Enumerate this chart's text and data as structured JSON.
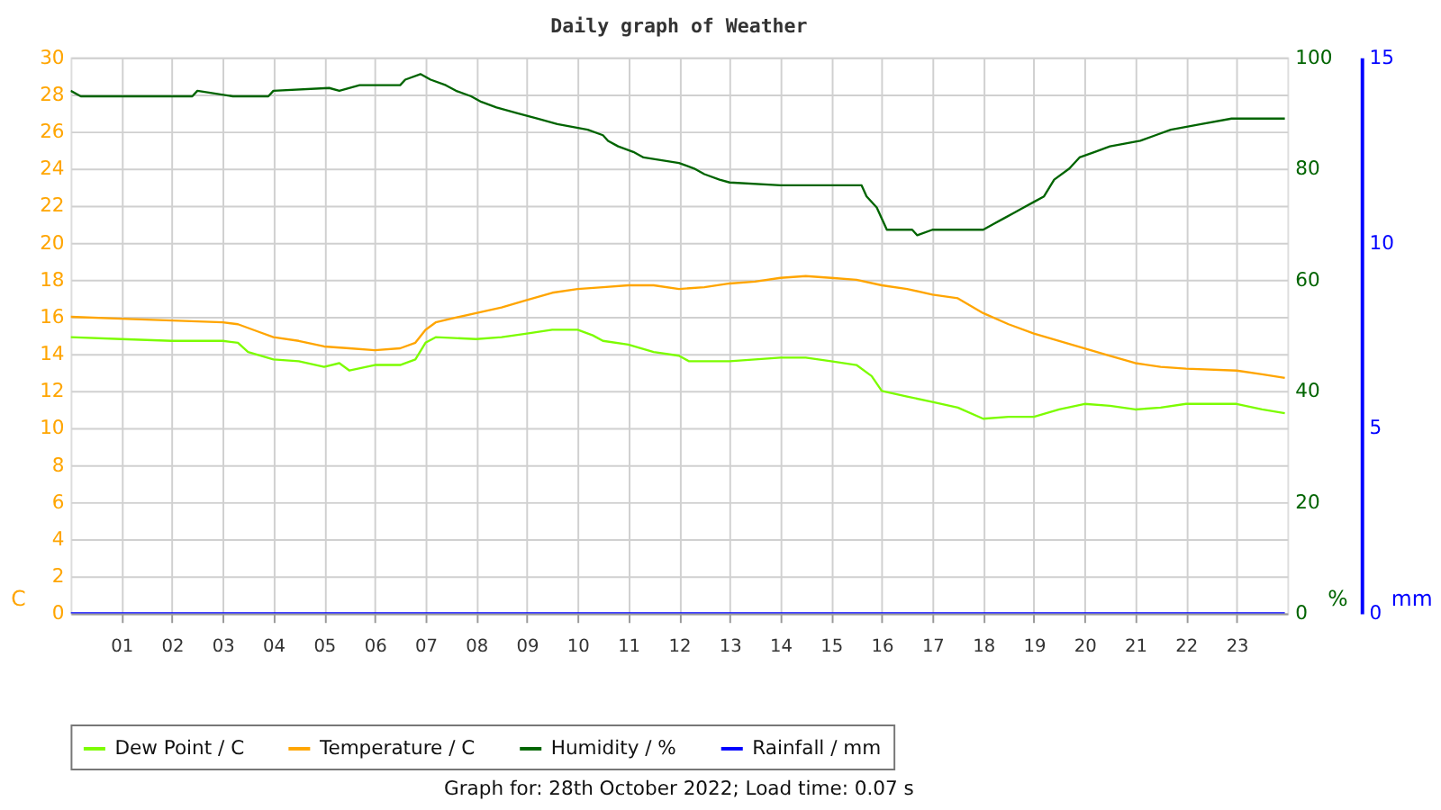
{
  "chart_data": {
    "type": "line",
    "title": "Daily graph of Weather",
    "ylabel": "C",
    "y2label": "%",
    "y3label": "mm",
    "xlim": [
      0,
      24
    ],
    "xticks": [
      {
        "value": 1,
        "label": "01"
      },
      {
        "value": 2,
        "label": "02"
      },
      {
        "value": 3,
        "label": "03"
      },
      {
        "value": 4,
        "label": "04"
      },
      {
        "value": 5,
        "label": "05"
      },
      {
        "value": 6,
        "label": "06"
      },
      {
        "value": 7,
        "label": "07"
      },
      {
        "value": 8,
        "label": "08"
      },
      {
        "value": 9,
        "label": "09"
      },
      {
        "value": 10,
        "label": "10"
      },
      {
        "value": 11,
        "label": "11"
      },
      {
        "value": 12,
        "label": "12"
      },
      {
        "value": 13,
        "label": "13"
      },
      {
        "value": 14,
        "label": "14"
      },
      {
        "value": 15,
        "label": "15"
      },
      {
        "value": 16,
        "label": "16"
      },
      {
        "value": 17,
        "label": "17"
      },
      {
        "value": 18,
        "label": "18"
      },
      {
        "value": 19,
        "label": "19"
      },
      {
        "value": 20,
        "label": "20"
      },
      {
        "value": 21,
        "label": "21"
      },
      {
        "value": 22,
        "label": "22"
      },
      {
        "value": 23,
        "label": "23"
      }
    ],
    "ylim": [
      0,
      30
    ],
    "yticks": [
      0,
      2,
      4,
      6,
      8,
      10,
      12,
      14,
      16,
      18,
      20,
      22,
      24,
      26,
      28,
      30
    ],
    "y2lim": [
      0,
      100
    ],
    "y2ticks": [
      0,
      20,
      40,
      60,
      80,
      100
    ],
    "y3lim": [
      0,
      15
    ],
    "y3ticks": [
      0,
      5,
      10,
      15
    ],
    "grid": true,
    "legend": "bottom",
    "line_style": "solid",
    "marker": "none",
    "annotations": [
      "Graph for: 28th October 2022; Load time: 0.07 s"
    ],
    "series": [
      {
        "name": "Dew Point / C",
        "color": "#7cfc00",
        "x": [
          0,
          1,
          2,
          3,
          3.3,
          3.5,
          4,
          4.5,
          5,
          5.3,
          5.5,
          6,
          6.5,
          6.8,
          7,
          7.2,
          8,
          8.5,
          9,
          9.5,
          10,
          10.3,
          10.5,
          11,
          11.5,
          12,
          12.2,
          13,
          14,
          14.5,
          15,
          15.5,
          15.8,
          16,
          16.5,
          17,
          17.5,
          18,
          18.5,
          19,
          19.5,
          20,
          20.5,
          21,
          21.5,
          22,
          23,
          23.5,
          23.95
        ],
        "values": [
          14.9,
          14.8,
          14.7,
          14.7,
          14.6,
          14.1,
          13.7,
          13.6,
          13.3,
          13.5,
          13.1,
          13.4,
          13.4,
          13.7,
          14.6,
          14.9,
          14.8,
          14.9,
          15.1,
          15.3,
          15.3,
          15.0,
          14.7,
          14.5,
          14.1,
          13.9,
          13.6,
          13.6,
          13.8,
          13.8,
          13.6,
          13.4,
          12.8,
          12.0,
          11.7,
          11.4,
          11.1,
          10.5,
          10.6,
          10.6,
          11.0,
          11.3,
          11.2,
          11.0,
          11.1,
          11.3,
          11.3,
          11.0,
          10.8
        ]
      },
      {
        "name": "Temperature / C",
        "color": "#ffa500",
        "x": [
          0,
          1,
          2,
          3,
          3.3,
          3.7,
          4,
          4.5,
          5,
          5.5,
          6,
          6.5,
          6.8,
          7,
          7.2,
          7.5,
          8,
          8.5,
          9,
          9.5,
          10,
          10.5,
          11,
          11.5,
          12,
          12.5,
          13,
          13.5,
          14,
          14.5,
          15,
          15.5,
          16,
          16.5,
          17,
          17.5,
          18,
          18.5,
          19,
          19.5,
          20,
          20.5,
          21,
          21.5,
          22,
          23,
          23.5,
          23.95
        ],
        "values": [
          16.0,
          15.9,
          15.8,
          15.7,
          15.6,
          15.2,
          14.9,
          14.7,
          14.4,
          14.3,
          14.2,
          14.3,
          14.6,
          15.3,
          15.7,
          15.9,
          16.2,
          16.5,
          16.9,
          17.3,
          17.5,
          17.6,
          17.7,
          17.7,
          17.5,
          17.6,
          17.8,
          17.9,
          18.1,
          18.2,
          18.1,
          18.0,
          17.7,
          17.5,
          17.2,
          17.0,
          16.2,
          15.6,
          15.1,
          14.7,
          14.3,
          13.9,
          13.5,
          13.3,
          13.2,
          13.1,
          12.9,
          12.7
        ]
      },
      {
        "name": "Humidity / %",
        "color": "#006400",
        "axis": "y2",
        "x": [
          0,
          0.2,
          2.4,
          2.5,
          3.2,
          3.9,
          4.0,
          5.1,
          5.3,
          5.7,
          6.5,
          6.6,
          6.9,
          7.1,
          7.4,
          7.6,
          7.9,
          8.1,
          8.4,
          8.8,
          9.2,
          9.6,
          10.2,
          10.5,
          10.6,
          10.8,
          11.1,
          11.3,
          12.0,
          12.3,
          12.5,
          12.8,
          13.0,
          14.0,
          15.6,
          15.7,
          15.9,
          16.1,
          16.6,
          16.7,
          17.0,
          18.0,
          18.2,
          18.4,
          18.6,
          18.8,
          19.0,
          19.2,
          19.4,
          19.7,
          19.9,
          20.2,
          20.5,
          21.1,
          21.4,
          21.7,
          22.3,
          22.9,
          23.95
        ],
        "values": [
          94,
          93,
          93,
          94,
          93,
          93,
          94,
          94.5,
          94,
          95,
          95,
          96,
          97,
          96,
          95,
          94,
          93,
          92,
          91,
          90,
          89,
          88,
          87,
          86,
          85,
          84,
          83,
          82,
          81,
          80,
          79,
          78,
          77.5,
          77,
          77,
          75,
          73,
          69,
          69,
          68,
          69,
          69,
          70,
          71,
          72,
          73,
          74,
          75,
          78,
          80,
          82,
          83,
          84,
          85,
          86,
          87,
          88,
          89,
          89
        ]
      },
      {
        "name": "Rainfall / mm",
        "color": "#0000ff",
        "axis": "y3",
        "x": [
          0,
          23.95
        ],
        "values": [
          0,
          0
        ]
      }
    ]
  }
}
